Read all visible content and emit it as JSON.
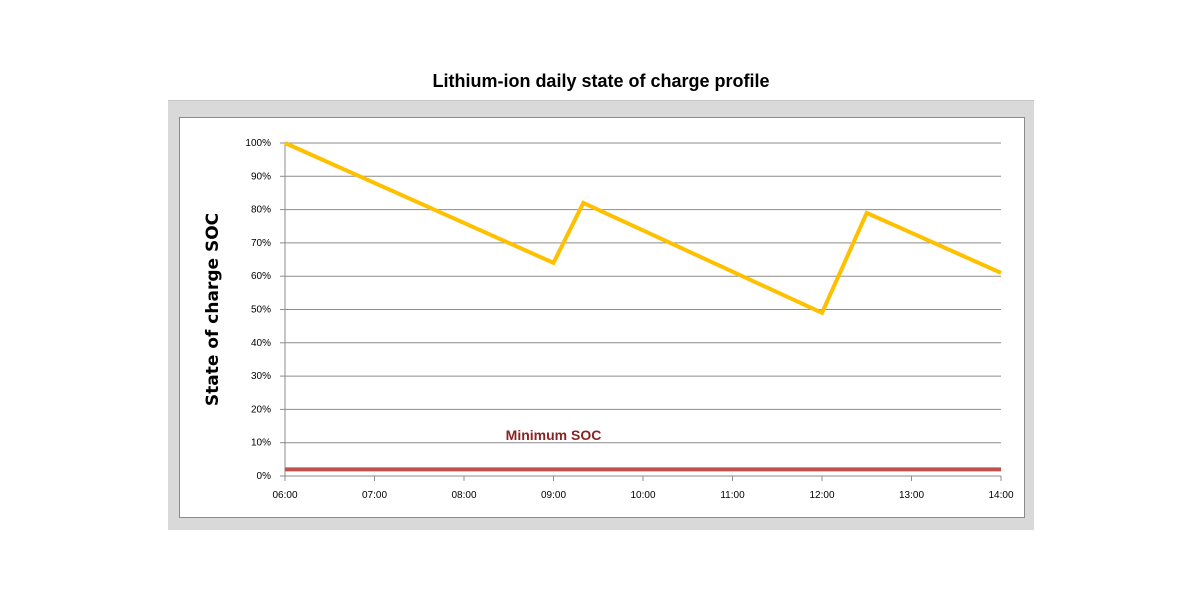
{
  "chart_data": {
    "type": "line",
    "title": "Lithium-ion daily state of charge profile",
    "ylabel": "State of charge SOC",
    "xlabel": "",
    "x_ticks": [
      "06:00",
      "07:00",
      "08:00",
      "09:00",
      "10:00",
      "11:00",
      "12:00",
      "13:00",
      "14:00"
    ],
    "y_ticks": [
      "0%",
      "10%",
      "20%",
      "30%",
      "40%",
      "50%",
      "60%",
      "70%",
      "80%",
      "90%",
      "100%"
    ],
    "xlim": [
      "06:00",
      "14:00"
    ],
    "ylim": [
      0,
      100
    ],
    "grid": true,
    "series": [
      {
        "color": "#ffc000",
        "points": [
          {
            "x": "06:00",
            "y": 100
          },
          {
            "x": "09:00",
            "y": 64
          },
          {
            "x": "09:20",
            "y": 82
          },
          {
            "x": "12:00",
            "y": 49
          },
          {
            "x": "12:30",
            "y": 79
          },
          {
            "x": "14:00",
            "y": 61
          }
        ]
      },
      {
        "name": "Minimum SOC",
        "color": "#c0504d",
        "points": [
          {
            "x": "06:00",
            "y": 2
          },
          {
            "x": "14:00",
            "y": 2
          }
        ]
      }
    ],
    "annotations": [
      {
        "text": "Minimum SOC",
        "x": "09:00",
        "y": 12,
        "color": "#8b2323"
      }
    ]
  }
}
